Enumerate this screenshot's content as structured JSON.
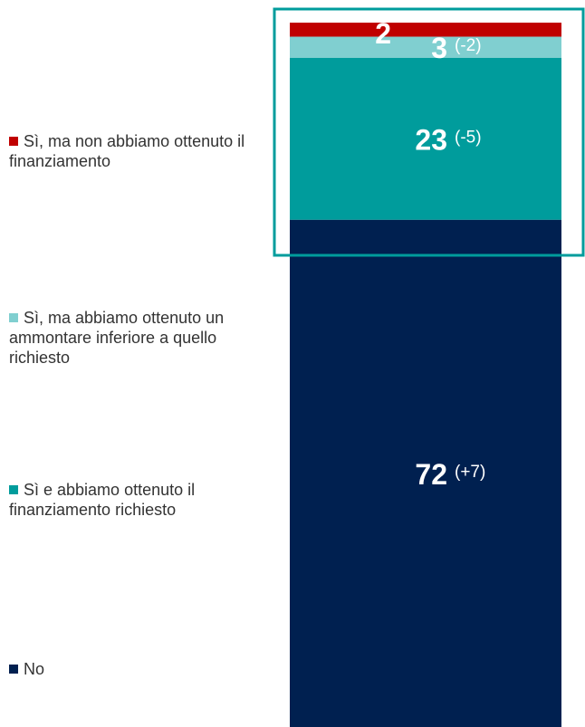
{
  "chart_data": {
    "type": "bar",
    "stacked": true,
    "categories": [
      null
    ],
    "series": [
      {
        "name": "Sì, ma non abbiamo ottenuto il finanziamento",
        "color": "#c00000",
        "values": [
          2
        ]
      },
      {
        "name": "Sì, ma abbiamo ottenuto un ammontare inferiore a quello richiesto",
        "color": "#80cfd0",
        "values": [
          3
        ],
        "annotation": "(-2)"
      },
      {
        "name": "Sì e abbiamo ottenuto il finanziamento richiesto",
        "color": "#009c9c",
        "values": [
          23
        ],
        "annotation": "(-5)"
      },
      {
        "name": "No",
        "color": "#002050",
        "values": [
          72
        ],
        "annotation": "(+7)"
      }
    ]
  }
}
